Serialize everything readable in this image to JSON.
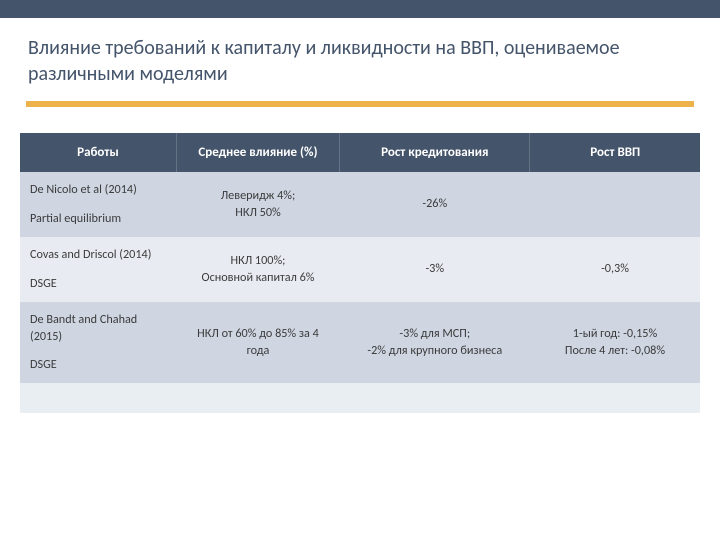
{
  "colors": {
    "topbar": "#44546a",
    "title_text": "#44546a",
    "accent": "#edb24a",
    "body_bg": "#e9eef3",
    "header_bg": "#44546a",
    "header_text": "#ffffff",
    "row_odd": "#cfd6e2",
    "row_even": "#e8ecf2",
    "cell_text": "#3b3b3b"
  },
  "layout": {
    "topbar_height": 18,
    "content_strip_height": 280
  },
  "title": "Влияние требований к капиталу и ликвидности на ВВП, оцениваемое различными моделями",
  "table": {
    "type": "table",
    "columns": [
      "Работы",
      "Среднее влияние (%)",
      "Рост кредитования",
      "Рост ВВП"
    ],
    "rows": [
      {
        "work_title": "De Nicolo et al (2014)",
        "work_model": "Partial equilibrium",
        "impact": "Леверидж 4%;\nНКЛ 50%",
        "credit": "-26%",
        "gdp": ""
      },
      {
        "work_title": "Covas and Driscol (2014)",
        "work_model": "DSGE",
        "impact": "НКЛ 100%;\nОсновной капитал 6%",
        "credit": "-3%",
        "gdp": "-0,3%"
      },
      {
        "work_title": "De Bandt and Chahad (2015)",
        "work_model": "DSGE",
        "impact": "НКЛ от 60% до 85% за 4 года",
        "credit": "-3% для МСП;\n-2% для крупного бизнеса",
        "gdp": "1-ый год: -0,15%\nПосле 4 лет: -0,08%"
      }
    ]
  }
}
